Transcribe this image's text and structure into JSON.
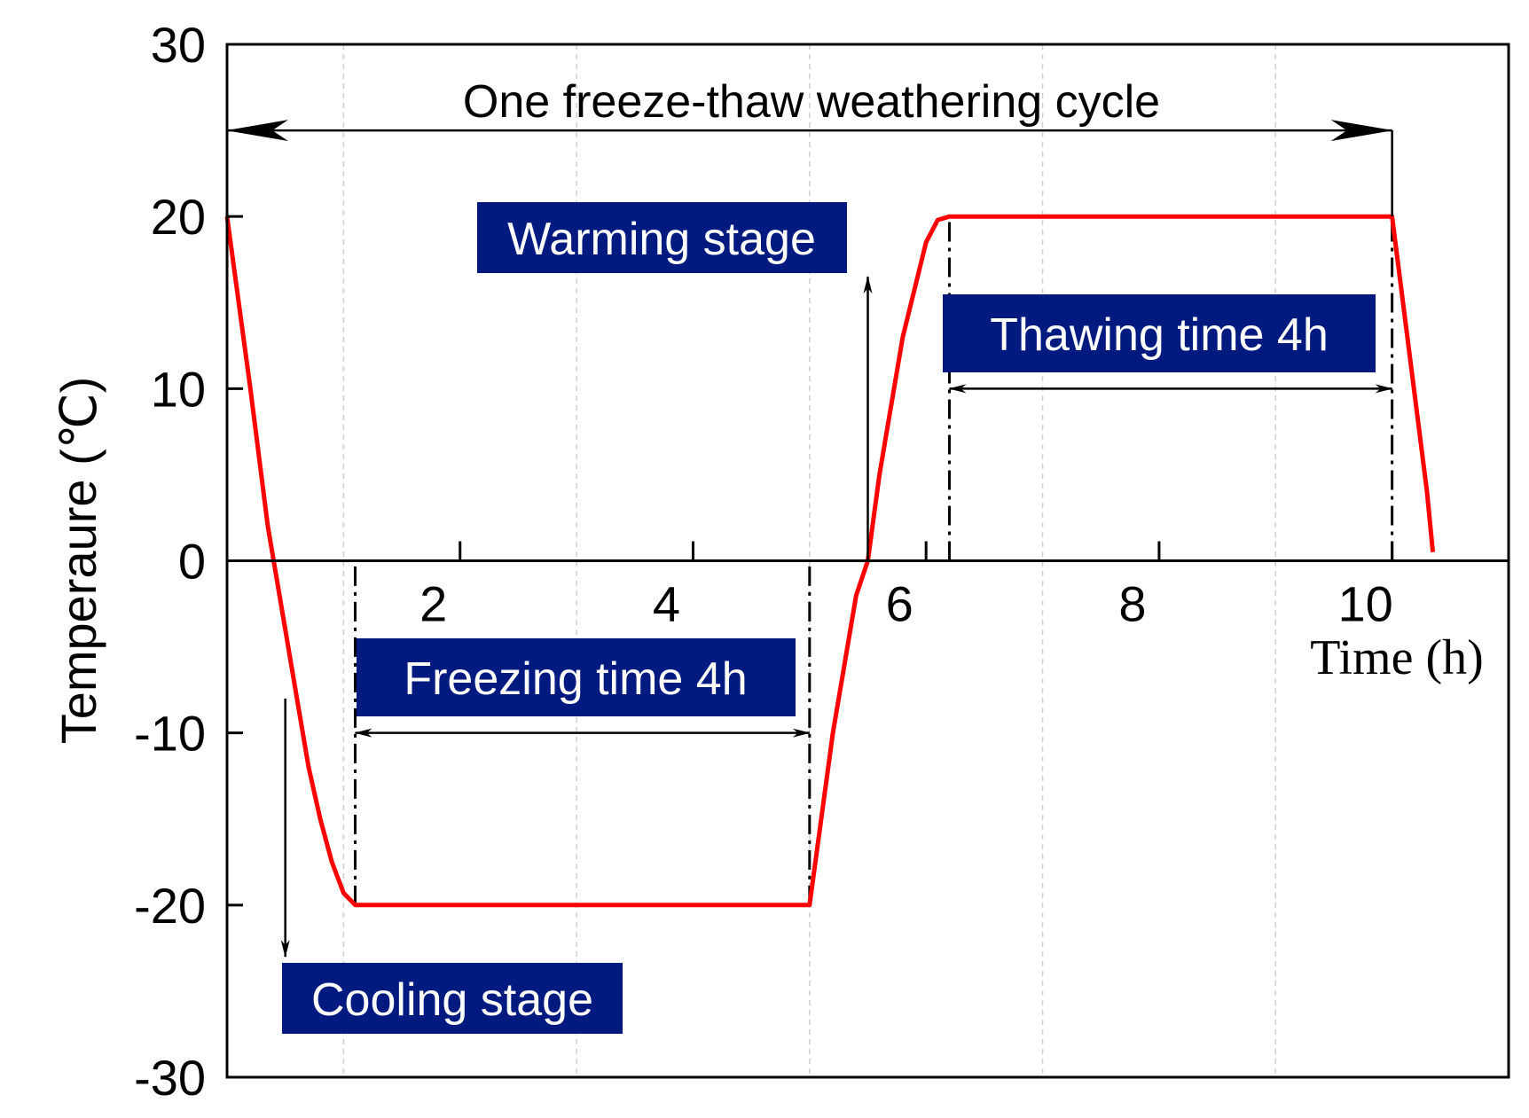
{
  "chart_data": {
    "type": "line",
    "xlabel": "Time (h)",
    "ylabel": "Temperaure (℃)",
    "xlim": [
      0,
      11
    ],
    "ylim": [
      -30,
      30
    ],
    "x_ticks": [
      2,
      4,
      6,
      8,
      10
    ],
    "y_ticks": [
      30,
      20,
      10,
      0,
      -10,
      -20,
      -30
    ],
    "grid": true,
    "series": [
      {
        "color": "#ff0000",
        "points": [
          [
            0.0,
            20
          ],
          [
            0.2,
            10
          ],
          [
            0.35,
            2
          ],
          [
            0.5,
            -4
          ],
          [
            0.6,
            -8
          ],
          [
            0.7,
            -12
          ],
          [
            0.8,
            -15
          ],
          [
            0.9,
            -17.5
          ],
          [
            1.0,
            -19.3
          ],
          [
            1.1,
            -20
          ],
          [
            5.0,
            -20
          ],
          [
            5.2,
            -10
          ],
          [
            5.4,
            -2
          ],
          [
            5.5,
            0
          ],
          [
            5.6,
            5
          ],
          [
            5.8,
            13
          ],
          [
            6.0,
            18.5
          ],
          [
            6.1,
            19.8
          ],
          [
            6.2,
            20
          ],
          [
            10.0,
            20
          ],
          [
            10.15,
            12
          ],
          [
            10.3,
            4
          ],
          [
            10.35,
            0.5
          ]
        ]
      }
    ],
    "annotations": {
      "cycle": "One freeze-thaw weathering cycle",
      "warming": "Warming stage",
      "thawing": "Thawing time 4h",
      "freezing": "Freezing time 4h",
      "cooling": "Cooling stage"
    },
    "colors": {
      "curve": "#ff0000",
      "label_box": "#001a80",
      "label_text": "#ffffff"
    }
  }
}
